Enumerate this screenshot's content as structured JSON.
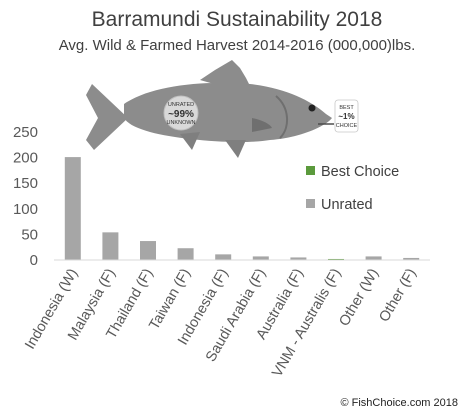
{
  "chart_data": {
    "type": "bar",
    "title": "Barramundi Sustainability 2018",
    "subtitle": "Avg. Wild & Farmed Harvest 2014-2016 (000,000)lbs.",
    "categories": [
      "Indonesia (W)",
      "Malaysia (F)",
      "Thailand (F)",
      "Taiwan (F)",
      "Indonesia (F)",
      "Saudi Arabia (F)",
      "Australia (F)",
      "VNM - Australis (F)",
      "Other (W)",
      "Other (F)"
    ],
    "series": [
      {
        "name": "Best Choice",
        "color": "#5b9a3c",
        "values": [
          0,
          0,
          0,
          0,
          0,
          0,
          0,
          2,
          0,
          0
        ]
      },
      {
        "name": "Unrated",
        "color": "#a6a6a6",
        "values": [
          201,
          54,
          37,
          23,
          11,
          7,
          5,
          0,
          7,
          4
        ]
      }
    ],
    "yticks": [
      0,
      50,
      100,
      150,
      200,
      250
    ],
    "ylim": [
      0,
      250
    ],
    "grid": false,
    "legend_position": "right"
  },
  "fish_badges": {
    "unrated_top": "UNRATED",
    "unrated_mid": "~99%",
    "unrated_bottom": "UNKNOWN",
    "best_top": "BEST",
    "best_mid": "~1%",
    "best_bottom": "CHOICE"
  },
  "credit": "© FishChoice.com 2018"
}
